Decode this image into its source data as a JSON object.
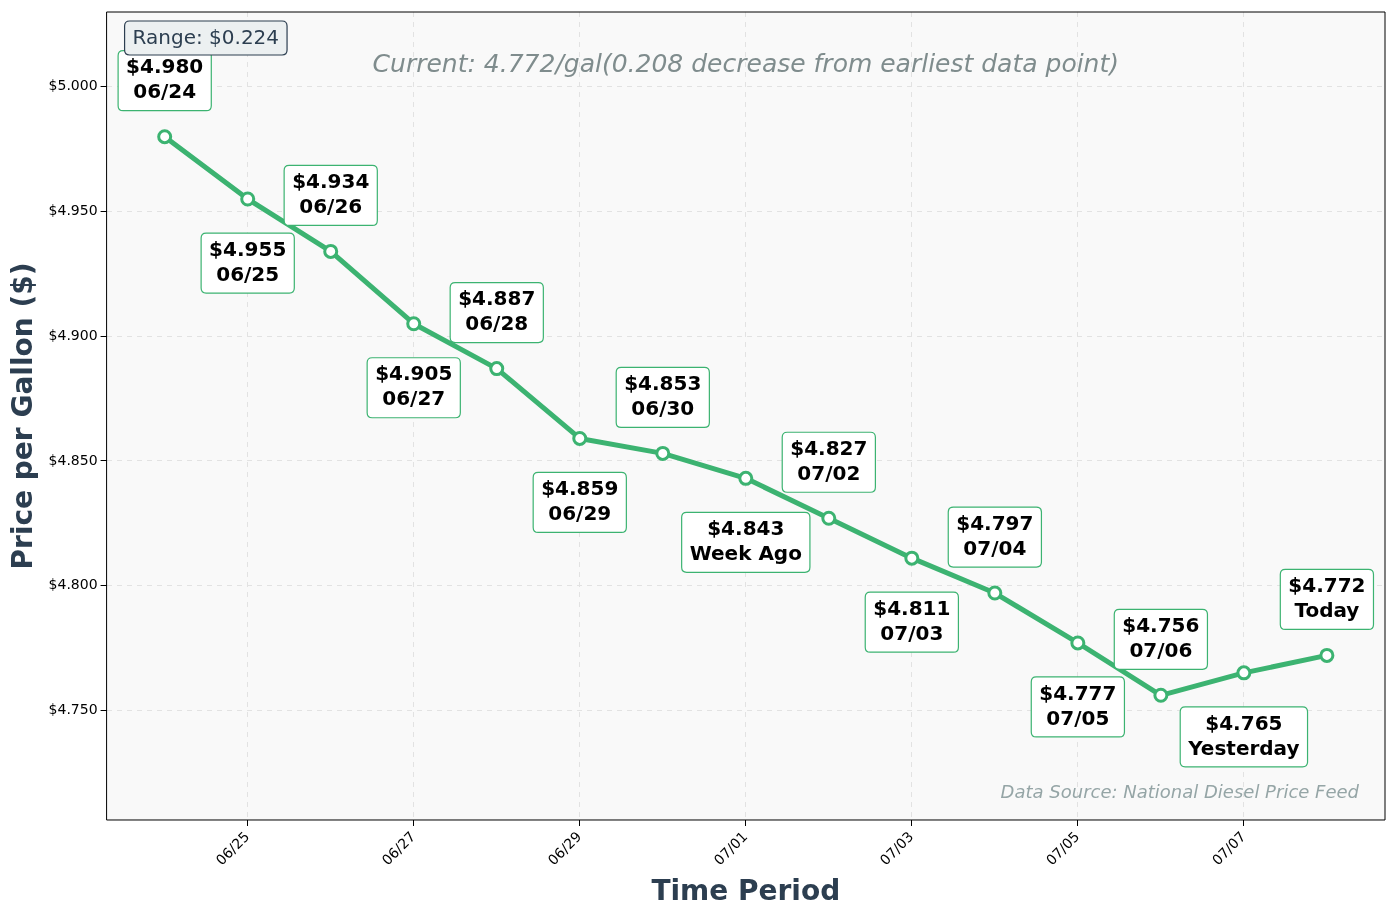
{
  "chart_data": {
    "type": "line",
    "xlabel": "Time Period",
    "ylabel": "Price per Gallon ($)",
    "x": [
      "--06-24",
      "--06-25",
      "--06-26",
      "--06-27",
      "--06-28",
      "--06-29",
      "--06-30",
      "--07-01",
      "--07-02",
      "--07-03",
      "--07-04",
      "--07-05",
      "--07-06",
      "--07-07",
      "--07-08"
    ],
    "series": [
      {
        "color": "#3cb371",
        "values": [
          4.98,
          4.955,
          4.934,
          4.905,
          4.887,
          4.859,
          4.853,
          4.843,
          4.827,
          4.811,
          4.797,
          4.777,
          4.756,
          4.765,
          4.772
        ],
        "value_labels": [
          "$4.980\n06/24",
          "$4.955\n06/25",
          "$4.934\n06/26",
          "$4.905\n06/27",
          "$4.887\n06/28",
          "$4.859\n06/29",
          "$4.853\n06/30",
          "$4.843\nWeek Ago",
          "$4.827\n07/02",
          "$4.811\n07/03",
          "$4.797\n07/04",
          "$4.777\n07/05",
          "$4.756\n07/06",
          "$4.765\nYesterday",
          "$4.772\nToday"
        ]
      }
    ],
    "xlim": [
      "--06-23T07:12",
      "--07-08T16:48"
    ],
    "xticks": [
      {
        "value": "--06-25",
        "label": "06/25"
      },
      {
        "value": "--06-27",
        "label": "06/27"
      },
      {
        "value": "--06-29",
        "label": "06/29"
      },
      {
        "value": "--07-01",
        "label": "07/01"
      },
      {
        "value": "--07-03",
        "label": "07/03"
      },
      {
        "value": "--07-05",
        "label": "07/05"
      },
      {
        "value": "--07-07",
        "label": "07/07"
      }
    ],
    "ylim": [
      4.706,
      5.03
    ],
    "yticks": [
      {
        "value": 4.75,
        "label": "$4.750"
      },
      {
        "value": 4.8,
        "label": "$4.800"
      },
      {
        "value": 4.85,
        "label": "$4.850"
      },
      {
        "value": 4.9,
        "label": "$4.900"
      },
      {
        "value": 4.95,
        "label": "$4.950"
      },
      {
        "value": 5.0,
        "label": "$5.000"
      }
    ],
    "grid": true,
    "marker": "circle",
    "line_style": "solid",
    "annotations": [
      "Range: $0.224",
      "Current: 4.772/gal(0.208 decrease from earliest data point)",
      "Data Source: National Diesel Price Feed"
    ]
  }
}
